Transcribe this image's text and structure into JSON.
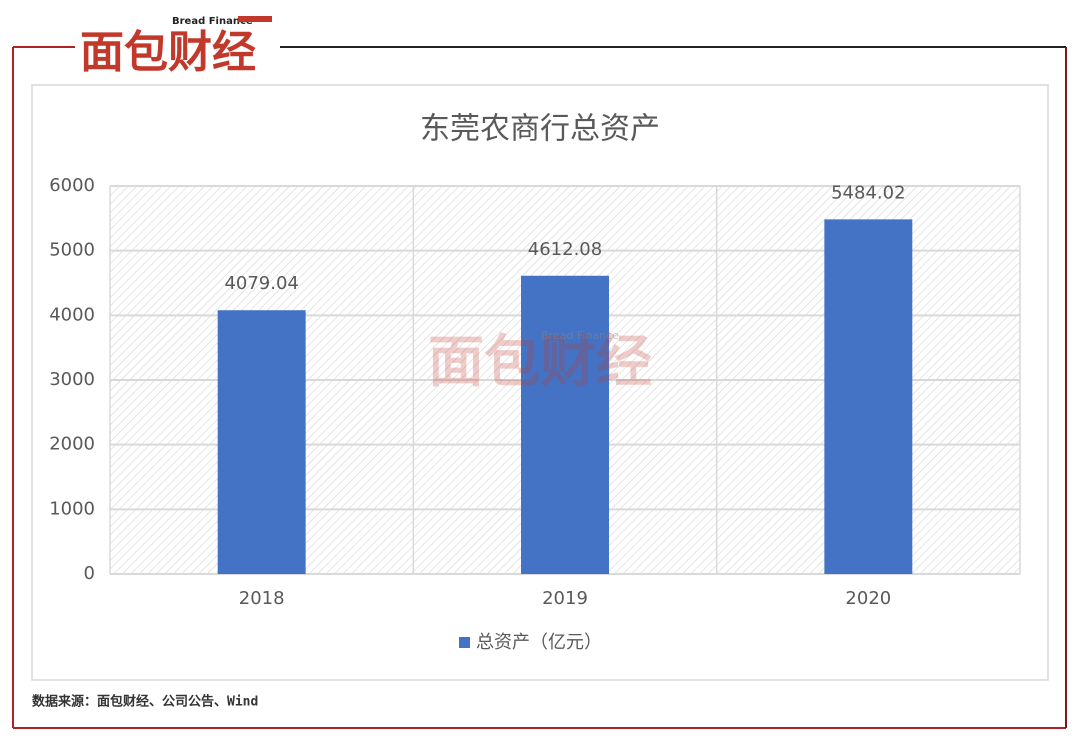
{
  "logo": {
    "en": "Bread Finance",
    "cn": "面包财经"
  },
  "source": "数据来源：面包财经、公司公告、Wind",
  "chart_data": {
    "type": "bar",
    "title": "东莞农商行总资产",
    "categories": [
      "2018",
      "2019",
      "2020"
    ],
    "series": [
      {
        "name": "总资产（亿元）",
        "color": "#4472c4",
        "values": [
          4079.04,
          4612.08,
          5484.02
        ]
      }
    ],
    "ylim": [
      0,
      6000
    ],
    "yticks": [
      0,
      1000,
      2000,
      3000,
      4000,
      5000,
      6000
    ],
    "grid": true,
    "legend": "bottom"
  }
}
